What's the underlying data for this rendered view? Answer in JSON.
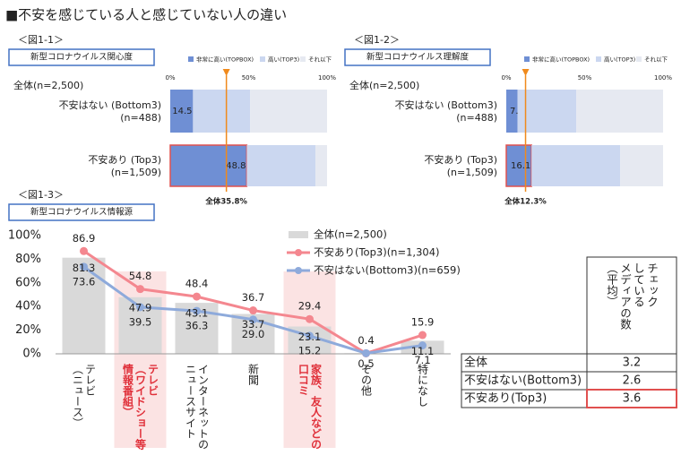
{
  "title": "■不安を感じている人と感じていない人の違い",
  "chart_data": [
    {
      "type": "bar",
      "orientation": "horizontal",
      "stacked": true,
      "figure_label": "＜図1-1＞",
      "title": "新型コロナウイルス関心度",
      "group_label": "全体(n=2,500)",
      "categories": [
        "不安はない (Bottom3)",
        "不安あり (Top3)"
      ],
      "category_notes": [
        "(n=488)",
        "(n=1,509)"
      ],
      "series": [
        {
          "name": "非常に高い(TOPBOX)",
          "color": "#6f8fd4",
          "values": [
            14.5,
            48.8
          ],
          "labeled": true
        },
        {
          "name": "高い(TOP3)",
          "color": "#cbd7f0",
          "values": [
            36.5,
            43.8
          ]
        },
        {
          "name": "それ以下",
          "color": "#e6e9f1",
          "values": [
            49,
            7.4
          ]
        }
      ],
      "xlim": [
        0,
        100
      ],
      "xticks": [
        {
          "value": 0,
          "label": "0%"
        },
        {
          "value": 50,
          "label": "50%"
        },
        {
          "value": 100,
          "label": "100%"
        }
      ],
      "reference": {
        "value": 35.8,
        "label": "全体35.8%",
        "color": "#f08a1c"
      },
      "highlight_categories": [
        1
      ]
    },
    {
      "type": "bar",
      "orientation": "horizontal",
      "stacked": true,
      "figure_label": "＜図1-2＞",
      "title": "新型コロナウイルス理解度",
      "group_label": "全体(n=2,500)",
      "categories": [
        "不安はない (Bottom3)",
        "不安あり (Top3)"
      ],
      "category_notes": [
        "(n=488)",
        "(n=1,509)"
      ],
      "series": [
        {
          "name": "非常に高い(TOPBOX)",
          "color": "#6f8fd4",
          "values": [
            7.2,
            16.1
          ],
          "labeled": true
        },
        {
          "name": "高い(TOP3)",
          "color": "#cbd7f0",
          "values": [
            37.4,
            56.5
          ]
        },
        {
          "name": "それ以下",
          "color": "#e6e9f1",
          "values": [
            55.4,
            27.4
          ]
        }
      ],
      "xlim": [
        0,
        100
      ],
      "xticks": [
        {
          "value": 0,
          "label": "0%"
        },
        {
          "value": 50,
          "label": "50%"
        },
        {
          "value": 100,
          "label": "100%"
        }
      ],
      "reference": {
        "value": 12.3,
        "label": "全体12.3%",
        "color": "#f08a1c"
      },
      "highlight_categories": [
        1
      ]
    },
    {
      "type": "combo",
      "figure_label": "＜図1-3＞",
      "title": "新型コロナウイルス情報源",
      "categories": [
        "テレビ\n（ニュース）",
        "テレビ\n（ワイドショー等\n情報番組）",
        "インターネットの\nニュースサイト",
        "新聞",
        "家族、友人などの\n口コミ",
        "その他",
        "特になし"
      ],
      "highlight_categories": [
        1,
        4
      ],
      "series": [
        {
          "name": "全体(n=2,500)",
          "kind": "bar",
          "color": "#d9d9d9",
          "values": [
            81.3,
            47.9,
            43.1,
            33.7,
            23.1,
            0.5,
            11.1
          ]
        },
        {
          "name": "不安あり(Top3)(n=1,304)",
          "kind": "line",
          "color": "#f4878f",
          "values": [
            86.9,
            54.8,
            48.4,
            36.7,
            29.4,
            0.4,
            15.9
          ]
        },
        {
          "name": "不安はない(Bottom3)(n=659)",
          "kind": "line",
          "color": "#8eaadb",
          "values": [
            73.6,
            39.5,
            36.3,
            29.0,
            15.2,
            0.5,
            7.1
          ],
          "value_labels": [
            "73.6",
            "39.5",
            "36.3",
            "29.0",
            "15.2",
            null,
            "7.1"
          ]
        }
      ],
      "ylim": [
        0,
        100
      ],
      "yticks": [
        {
          "value": 0,
          "label": "0%"
        },
        {
          "value": 20,
          "label": "20%"
        },
        {
          "value": 40,
          "label": "40%"
        },
        {
          "value": 60,
          "label": "60%"
        },
        {
          "value": 80,
          "label": "80%"
        },
        {
          "value": 100,
          "label": "100%"
        }
      ],
      "grid": false
    }
  ],
  "table": {
    "header": [
      "チェック",
      "している",
      "メディアの数",
      "（平均）"
    ],
    "rows": [
      [
        "全体",
        "3.2"
      ],
      [
        "不安はない(Bottom3)",
        "2.6"
      ],
      [
        "不安あり(Top3)",
        "3.6"
      ]
    ],
    "highlight_row": 2
  }
}
